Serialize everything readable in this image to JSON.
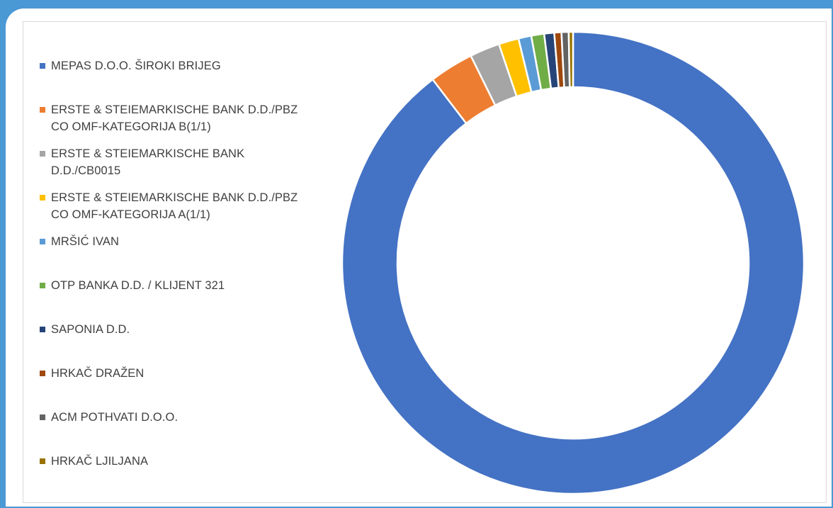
{
  "chart_data": {
    "type": "pie",
    "subtype": "donut",
    "legend_position": "left",
    "categories": [
      "MEPAS D.O.O. ŠIROKI BRIJEG",
      "ERSTE & STEIEMARKISCHE BANK D.D./PBZ CO OMF-KATEGORIJA B(1/1)",
      "ERSTE & STEIEMARKISCHE BANK D.D./CB0015",
      "ERSTE & STEIEMARKISCHE BANK D.D./PBZ CO OMF-KATEGORIJA A(1/1)",
      "MRŠIĆ IVAN",
      "OTP BANKA D.D. / KLIJENT 321",
      "SAPONIA D.D.",
      "HRKAČ DRAŽEN",
      "ACM POTHVATI D.O.O.",
      "HRKAČ LJILJANA"
    ],
    "legend_lines": [
      [
        "MEPAS D.O.O. ŠIROKI BRIJEG"
      ],
      [
        "ERSTE & STEIEMARKISCHE BANK D.D./PBZ",
        "CO OMF-KATEGORIJA B(1/1)"
      ],
      [
        "ERSTE & STEIEMARKISCHE BANK",
        "D.D./CB0015"
      ],
      [
        "ERSTE & STEIEMARKISCHE BANK D.D./PBZ",
        "CO OMF-KATEGORIJA A(1/1)"
      ],
      [
        "MRŠIĆ IVAN"
      ],
      [
        "OTP BANKA D.D. / KLIJENT 321"
      ],
      [
        "SAPONIA D.D."
      ],
      [
        "HRKAČ DRAŽEN"
      ],
      [
        "ACM POTHVATI D.O.O."
      ],
      [
        "HRKAČ LJILJANA"
      ]
    ],
    "values": [
      89.6,
      3.1,
      2.1,
      1.4,
      0.9,
      0.9,
      0.7,
      0.5,
      0.5,
      0.3
    ],
    "colors": [
      "#4472c4",
      "#ed7d31",
      "#a5a5a5",
      "#ffc000",
      "#5b9bd5",
      "#70ad47",
      "#264478",
      "#9e480e",
      "#636363",
      "#997300"
    ]
  }
}
